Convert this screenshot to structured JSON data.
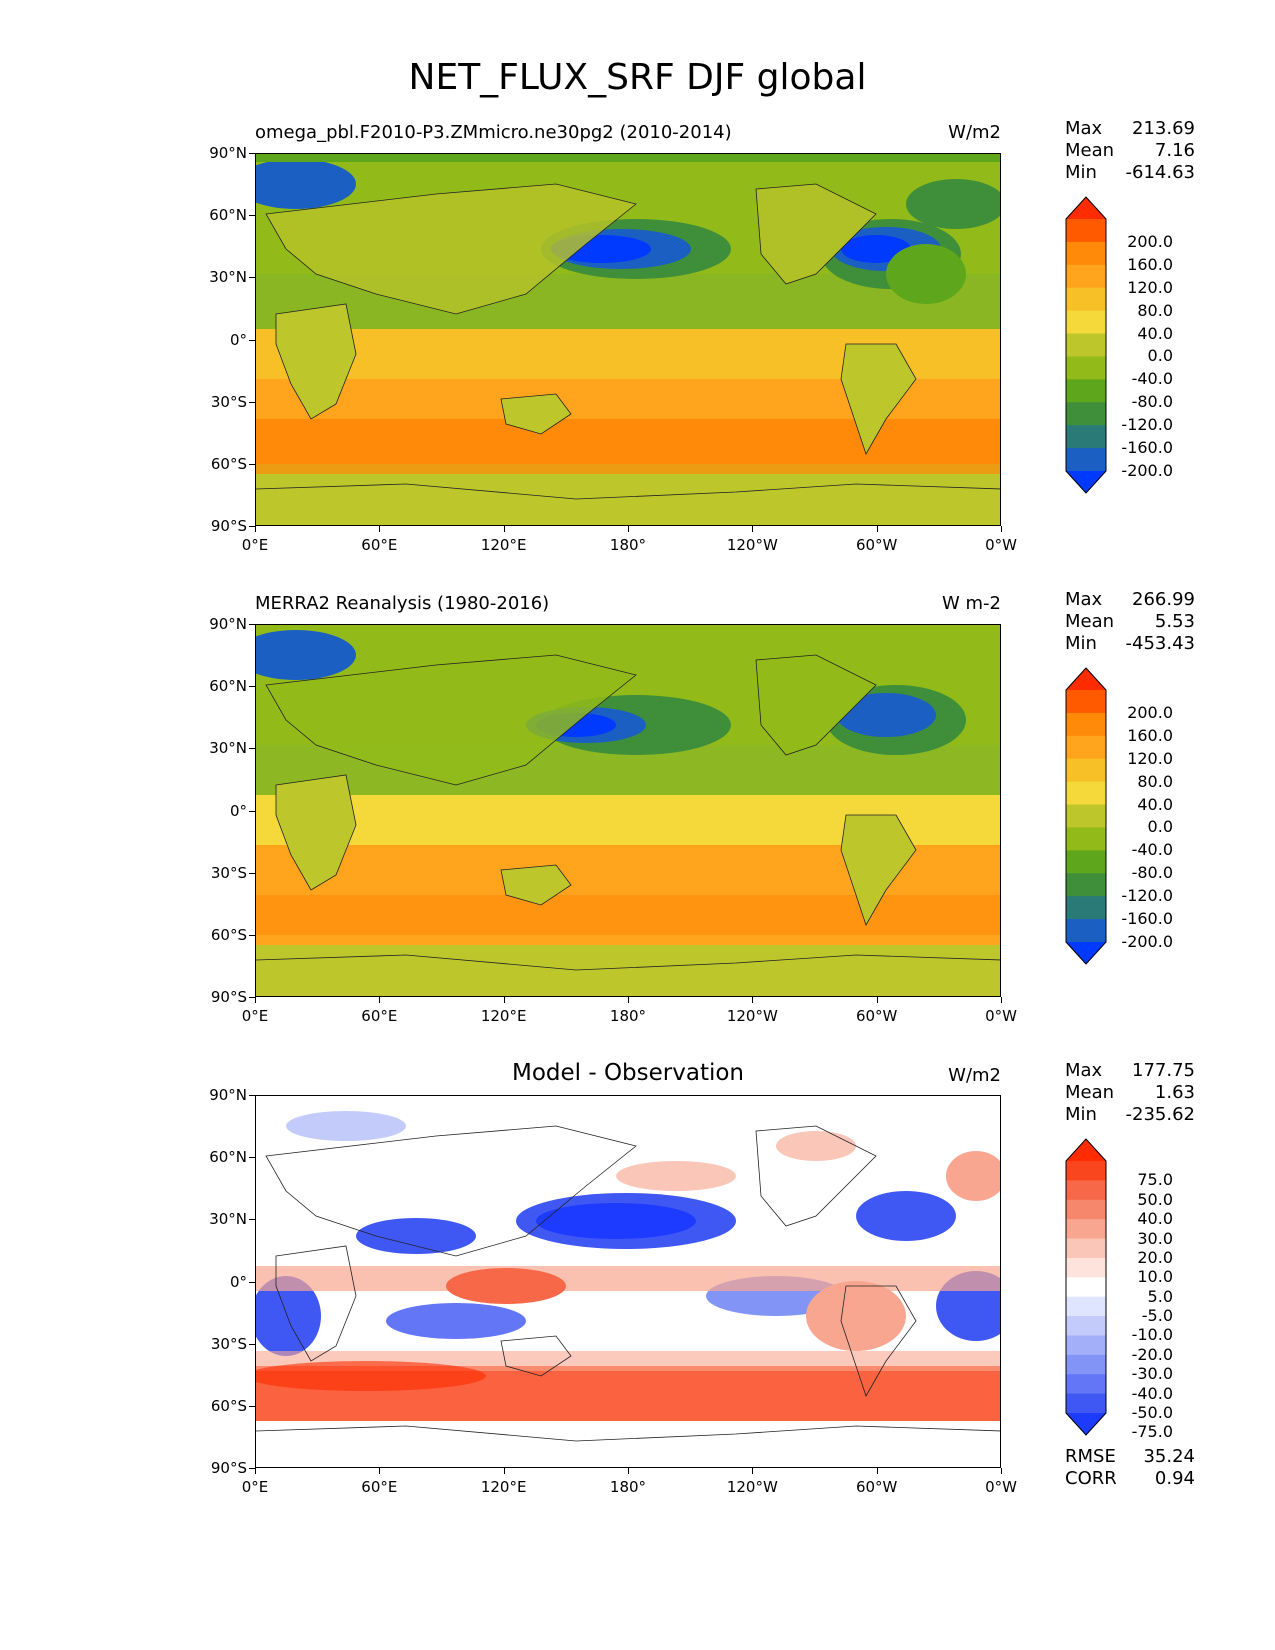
{
  "title": "NET_FLUX_SRF DJF global",
  "lat_ticks": [
    "90°N",
    "60°N",
    "30°N",
    "0°",
    "30°S",
    "60°S",
    "90°S"
  ],
  "lon_ticks": [
    "0°E",
    "60°E",
    "120°E",
    "180°",
    "120°W",
    "60°W",
    "0°W"
  ],
  "panels": [
    {
      "title": "omega_pbl.F2010-P3.ZMmicro.ne30pg2 (2010-2014)",
      "title_align": "left",
      "units": "W/m2",
      "stats": {
        "max_label": "Max",
        "max": "213.69",
        "mean_label": "Mean",
        "mean": "7.16",
        "min_label": "Min",
        "min": "-614.63"
      },
      "colorbar": {
        "labels": [
          "200.0",
          "160.0",
          "120.0",
          "80.0",
          "40.0",
          "0.0",
          "-40.0",
          "-80.0",
          "-120.0",
          "-160.0",
          "-200.0"
        ],
        "colors": [
          "#fe2c00",
          "#ff5a00",
          "#ff8a0a",
          "#ffa41c",
          "#f8c027",
          "#f5d83a",
          "#bdc72b",
          "#92bb1a",
          "#5ea71c",
          "#3f8e3a",
          "#2a7a78",
          "#1c5fc2",
          "#0039ff"
        ]
      }
    },
    {
      "title": "MERRA2 Reanalysis (1980-2016)",
      "title_align": "left",
      "units": "W m-2",
      "stats": {
        "max_label": "Max",
        "max": "266.99",
        "mean_label": "Mean",
        "mean": "5.53",
        "min_label": "Min",
        "min": "-453.43"
      },
      "colorbar": {
        "labels": [
          "200.0",
          "160.0",
          "120.0",
          "80.0",
          "40.0",
          "0.0",
          "-40.0",
          "-80.0",
          "-120.0",
          "-160.0",
          "-200.0"
        ],
        "colors": [
          "#fe2c00",
          "#ff5a00",
          "#ff8a0a",
          "#ffa41c",
          "#f8c027",
          "#f5d83a",
          "#bdc72b",
          "#92bb1a",
          "#5ea71c",
          "#3f8e3a",
          "#2a7a78",
          "#1c5fc2",
          "#0039ff"
        ]
      }
    },
    {
      "title": "Model - Observation",
      "title_align": "center",
      "units": "W/m2",
      "stats": {
        "max_label": "Max",
        "max": "177.75",
        "mean_label": "Mean",
        "mean": "1.63",
        "min_label": "Min",
        "min": "-235.62"
      },
      "colorbar": {
        "labels": [
          "75.0",
          "50.0",
          "40.0",
          "30.0",
          "20.0",
          "10.0",
          "5.0",
          "-5.0",
          "-10.0",
          "-20.0",
          "-30.0",
          "-40.0",
          "-50.0",
          "-75.0"
        ],
        "colors": [
          "#fe2c00",
          "#f9461f",
          "#f76848",
          "#f7876c",
          "#f8a690",
          "#fac6b7",
          "#fde3db",
          "#ffffff",
          "#dfe4ff",
          "#c3cbfb",
          "#a3b0f9",
          "#8394f7",
          "#6276f6",
          "#3f58f4",
          "#1d3aff"
        ]
      },
      "extra_stats": {
        "rmse_label": "RMSE",
        "rmse": "35.24",
        "corr_label": "CORR",
        "corr": "0.94"
      }
    }
  ]
}
